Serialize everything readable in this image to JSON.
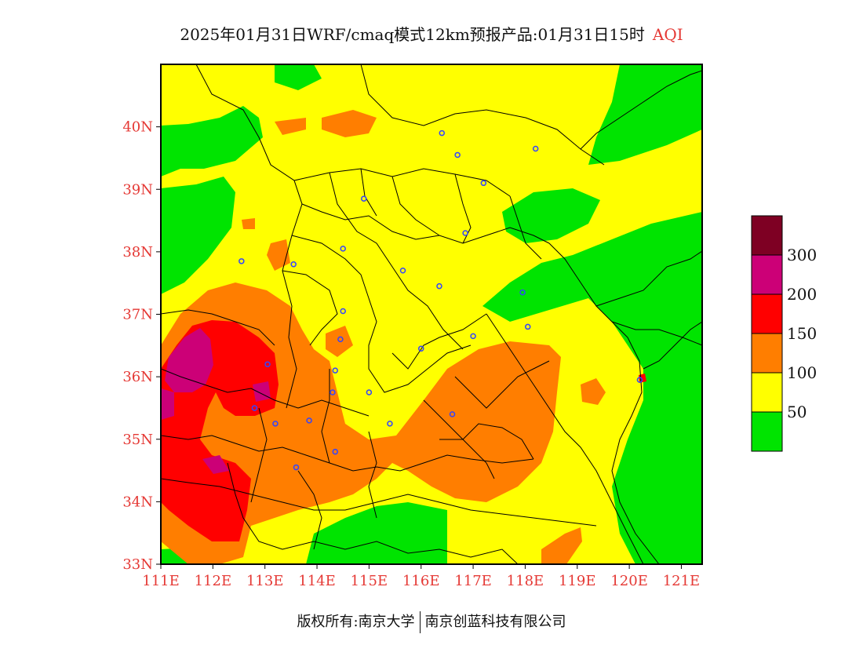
{
  "title": {
    "main": "2025年01月31日WRF/cmaq模式12km预报产品:01月31日15时",
    "variable": "AQI"
  },
  "map": {
    "lon_range": [
      111,
      121.4
    ],
    "lat_range": [
      33,
      41
    ],
    "x_ticks": [
      {
        "value": 111,
        "label": "111E"
      },
      {
        "value": 112,
        "label": "112E"
      },
      {
        "value": 113,
        "label": "113E"
      },
      {
        "value": 114,
        "label": "114E"
      },
      {
        "value": 115,
        "label": "115E"
      },
      {
        "value": 116,
        "label": "116E"
      },
      {
        "value": 117,
        "label": "117E"
      },
      {
        "value": 118,
        "label": "118E"
      },
      {
        "value": 119,
        "label": "119E"
      },
      {
        "value": 120,
        "label": "120E"
      },
      {
        "value": 121,
        "label": "121E"
      }
    ],
    "y_ticks": [
      {
        "value": 33,
        "label": "33N"
      },
      {
        "value": 34,
        "label": "34N"
      },
      {
        "value": 35,
        "label": "35N"
      },
      {
        "value": 36,
        "label": "36N"
      },
      {
        "value": 37,
        "label": "37N"
      },
      {
        "value": 38,
        "label": "38N"
      },
      {
        "value": 39,
        "label": "39N"
      },
      {
        "value": 40,
        "label": "40N"
      }
    ],
    "stations": [
      [
        116.4,
        39.9
      ],
      [
        116.7,
        39.55
      ],
      [
        118.2,
        39.65
      ],
      [
        117.2,
        39.1
      ],
      [
        114.9,
        38.85
      ],
      [
        116.85,
        38.3
      ],
      [
        112.55,
        37.85
      ],
      [
        113.55,
        37.8
      ],
      [
        114.5,
        38.05
      ],
      [
        115.65,
        37.7
      ],
      [
        116.35,
        37.45
      ],
      [
        117.95,
        37.35
      ],
      [
        118.05,
        36.8
      ],
      [
        117.0,
        36.65
      ],
      [
        116.0,
        36.45
      ],
      [
        114.5,
        37.05
      ],
      [
        114.45,
        36.6
      ],
      [
        114.35,
        36.1
      ],
      [
        113.05,
        36.2
      ],
      [
        114.3,
        35.75
      ],
      [
        115.0,
        35.75
      ],
      [
        112.8,
        35.5
      ],
      [
        113.85,
        35.3
      ],
      [
        113.2,
        35.25
      ],
      [
        115.4,
        35.25
      ],
      [
        116.6,
        35.4
      ],
      [
        114.35,
        34.8
      ],
      [
        113.6,
        34.55
      ],
      [
        120.2,
        35.95
      ]
    ]
  },
  "legend": {
    "bins": [
      {
        "color": "#00e400"
      },
      {
        "color": "#ffff00",
        "label": "50"
      },
      {
        "color": "#ff7e00",
        "label": "100"
      },
      {
        "color": "#ff0000",
        "label": "150"
      },
      {
        "color": "#cc0077",
        "label": "200"
      },
      {
        "color": "#7e0023",
        "label": "300"
      }
    ]
  },
  "footer": {
    "left": "版权所有:南京大学",
    "right": "南京创蓝科技有限公司"
  }
}
